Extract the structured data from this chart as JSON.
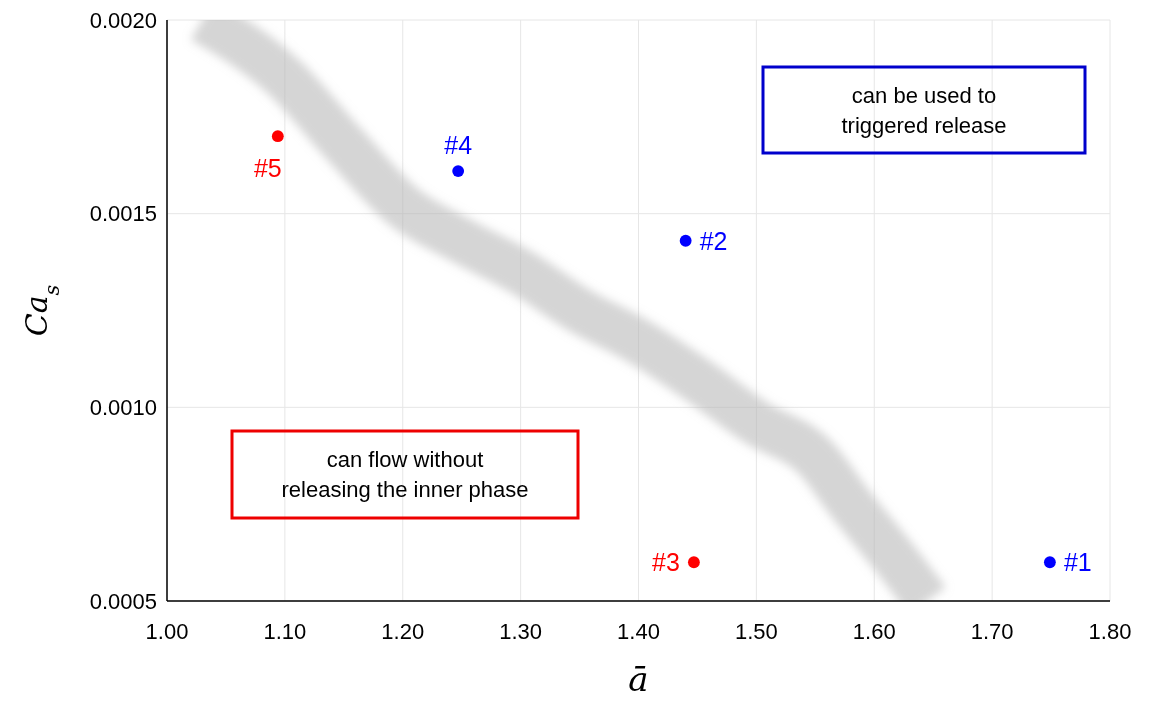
{
  "chart_data": {
    "type": "scatter",
    "xlabel": "ā",
    "ylabel": "Ca$_{s}$",
    "xlim": [
      1.0,
      1.8
    ],
    "ylim": [
      0.0005,
      0.002
    ],
    "xticks": [
      {
        "value": 1.0,
        "label": "1.00"
      },
      {
        "value": 1.1,
        "label": "1.10"
      },
      {
        "value": 1.2,
        "label": "1.20"
      },
      {
        "value": 1.3,
        "label": "1.30"
      },
      {
        "value": 1.4,
        "label": "1.40"
      },
      {
        "value": 1.5,
        "label": "1.50"
      },
      {
        "value": 1.6,
        "label": "1.60"
      },
      {
        "value": 1.7,
        "label": "1.70"
      },
      {
        "value": 1.8,
        "label": "1.80"
      }
    ],
    "yticks": [
      {
        "value": 0.0005,
        "label": "0.0005"
      },
      {
        "value": 0.001,
        "label": "0.0010"
      },
      {
        "value": 0.0015,
        "label": "0.0015"
      },
      {
        "value": 0.002,
        "label": "0.0020"
      }
    ],
    "grid": true,
    "marker": "circle",
    "series": [
      {
        "type": "line",
        "color": "#b3b3b3",
        "marker": "none",
        "x": [
          1.03,
          1.1,
          1.15,
          1.2,
          1.25,
          1.3,
          1.35,
          1.4,
          1.45,
          1.5,
          1.55,
          1.58,
          1.62,
          1.645
        ],
        "values": [
          0.002,
          0.00185,
          0.00168,
          0.00152,
          0.00143,
          0.00135,
          0.00125,
          0.00117,
          0.00107,
          0.00096,
          0.00087,
          0.00075,
          0.0006,
          0.0005
        ]
      },
      {
        "x": [
          1.749,
          1.44,
          1.447,
          1.247,
          1.094
        ],
        "values": [
          0.0006,
          0.00143,
          0.0006,
          0.00161,
          0.0017
        ],
        "colors": [
          "#0000ff",
          "#0000ff",
          "#ff0000",
          "#0000ff",
          "#ff0000"
        ]
      }
    ],
    "annotations": [
      "can be used to\ntriggered release",
      "can flow without\nreleasing the inner phase",
      {
        "text": "#1",
        "x": 1.749,
        "y": 0.0006
      },
      {
        "text": "#2",
        "x": 1.44,
        "y": 0.00143
      },
      {
        "text": "#3",
        "x": 1.447,
        "y": 0.0006
      },
      {
        "text": "#4",
        "x": 1.247,
        "y": 0.00161
      },
      {
        "text": "#5",
        "x": 1.094,
        "y": 0.0017
      }
    ]
  }
}
